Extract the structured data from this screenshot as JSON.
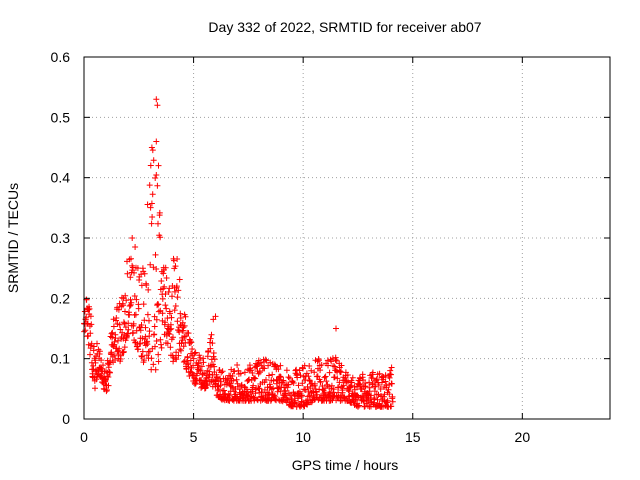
{
  "chart_data": {
    "type": "scatter",
    "title": "Day 332 of 2022, SRMTID for receiver ab07",
    "xlabel": "GPS time / hours",
    "ylabel": "SRMTID / TECUs",
    "xlim": [
      0,
      24
    ],
    "ylim": [
      0,
      0.6
    ],
    "xticks": [
      0,
      5,
      10,
      15,
      20
    ],
    "xtick_labels": [
      "0",
      "5",
      "10",
      "15",
      "20"
    ],
    "yticks": [
      0,
      0.1,
      0.2,
      0.3,
      0.4,
      0.5,
      0.6
    ],
    "ytick_labels": [
      "0",
      "0.1",
      "0.2",
      "0.3",
      "0.4",
      "0.5",
      "0.6"
    ],
    "grid": true,
    "marker": "+",
    "color": "#ff0000",
    "series": [
      {
        "name": "ab07",
        "envelope": [
          [
            0.0,
            0.14,
            0.18
          ],
          [
            0.1,
            0.15,
            0.2
          ],
          [
            0.2,
            0.12,
            0.19
          ],
          [
            0.3,
            0.1,
            0.18
          ],
          [
            0.4,
            0.06,
            0.14
          ],
          [
            0.5,
            0.05,
            0.12
          ],
          [
            0.6,
            0.07,
            0.13
          ],
          [
            0.7,
            0.08,
            0.12
          ],
          [
            0.8,
            0.06,
            0.1
          ],
          [
            0.9,
            0.05,
            0.09
          ],
          [
            1.0,
            0.04,
            0.09
          ],
          [
            1.1,
            0.05,
            0.11
          ],
          [
            1.2,
            0.07,
            0.14
          ],
          [
            1.3,
            0.09,
            0.16
          ],
          [
            1.4,
            0.09,
            0.18
          ],
          [
            1.5,
            0.1,
            0.19
          ],
          [
            1.6,
            0.1,
            0.2
          ],
          [
            1.7,
            0.09,
            0.2
          ],
          [
            1.8,
            0.11,
            0.23
          ],
          [
            1.9,
            0.12,
            0.26
          ],
          [
            2.0,
            0.14,
            0.27
          ],
          [
            2.1,
            0.15,
            0.28
          ],
          [
            2.2,
            0.14,
            0.27
          ],
          [
            2.3,
            0.13,
            0.29
          ],
          [
            2.4,
            0.12,
            0.3
          ],
          [
            2.5,
            0.11,
            0.27
          ],
          [
            2.6,
            0.1,
            0.24
          ],
          [
            2.7,
            0.09,
            0.26
          ],
          [
            2.8,
            0.1,
            0.32
          ],
          [
            2.9,
            0.09,
            0.36
          ],
          [
            3.0,
            0.08,
            0.41
          ],
          [
            3.1,
            0.08,
            0.45
          ],
          [
            3.2,
            0.07,
            0.46
          ],
          [
            3.3,
            0.08,
            0.5
          ],
          [
            3.4,
            0.09,
            0.46
          ],
          [
            3.5,
            0.1,
            0.35
          ],
          [
            3.6,
            0.12,
            0.27
          ],
          [
            3.7,
            0.13,
            0.26
          ],
          [
            3.8,
            0.12,
            0.24
          ],
          [
            3.9,
            0.11,
            0.25
          ],
          [
            4.0,
            0.1,
            0.26
          ],
          [
            4.1,
            0.09,
            0.27
          ],
          [
            4.2,
            0.08,
            0.28
          ],
          [
            4.3,
            0.1,
            0.26
          ],
          [
            4.4,
            0.11,
            0.22
          ],
          [
            4.5,
            0.1,
            0.2
          ],
          [
            4.6,
            0.09,
            0.18
          ],
          [
            4.7,
            0.08,
            0.16
          ],
          [
            4.8,
            0.07,
            0.14
          ],
          [
            4.9,
            0.07,
            0.13
          ],
          [
            5.0,
            0.06,
            0.12
          ],
          [
            5.2,
            0.05,
            0.11
          ],
          [
            5.4,
            0.05,
            0.1
          ],
          [
            5.6,
            0.05,
            0.11
          ],
          [
            5.8,
            0.06,
            0.15
          ],
          [
            6.0,
            0.04,
            0.09
          ],
          [
            6.3,
            0.03,
            0.08
          ],
          [
            6.6,
            0.03,
            0.08
          ],
          [
            7.0,
            0.03,
            0.09
          ],
          [
            7.5,
            0.03,
            0.09
          ],
          [
            8.0,
            0.03,
            0.1
          ],
          [
            8.5,
            0.03,
            0.1
          ],
          [
            9.0,
            0.03,
            0.09
          ],
          [
            9.5,
            0.02,
            0.08
          ],
          [
            10.0,
            0.02,
            0.09
          ],
          [
            10.5,
            0.03,
            0.1
          ],
          [
            11.0,
            0.03,
            0.1
          ],
          [
            11.5,
            0.03,
            0.11
          ],
          [
            12.0,
            0.03,
            0.08
          ],
          [
            12.5,
            0.02,
            0.07
          ],
          [
            13.0,
            0.02,
            0.08
          ],
          [
            13.5,
            0.02,
            0.08
          ],
          [
            14.0,
            0.02,
            0.09
          ]
        ],
        "x_start": 0.0,
        "x_end": 14.1,
        "outliers": [
          [
            3.3,
            0.53
          ],
          [
            3.35,
            0.52
          ],
          [
            3.1,
            0.45
          ],
          [
            3.3,
            0.46
          ],
          [
            3.4,
            0.42
          ],
          [
            11.5,
            0.15
          ],
          [
            6.0,
            0.17
          ],
          [
            5.9,
            0.165
          ],
          [
            1.8,
            0.2
          ],
          [
            2.2,
            0.3
          ]
        ]
      }
    ]
  }
}
